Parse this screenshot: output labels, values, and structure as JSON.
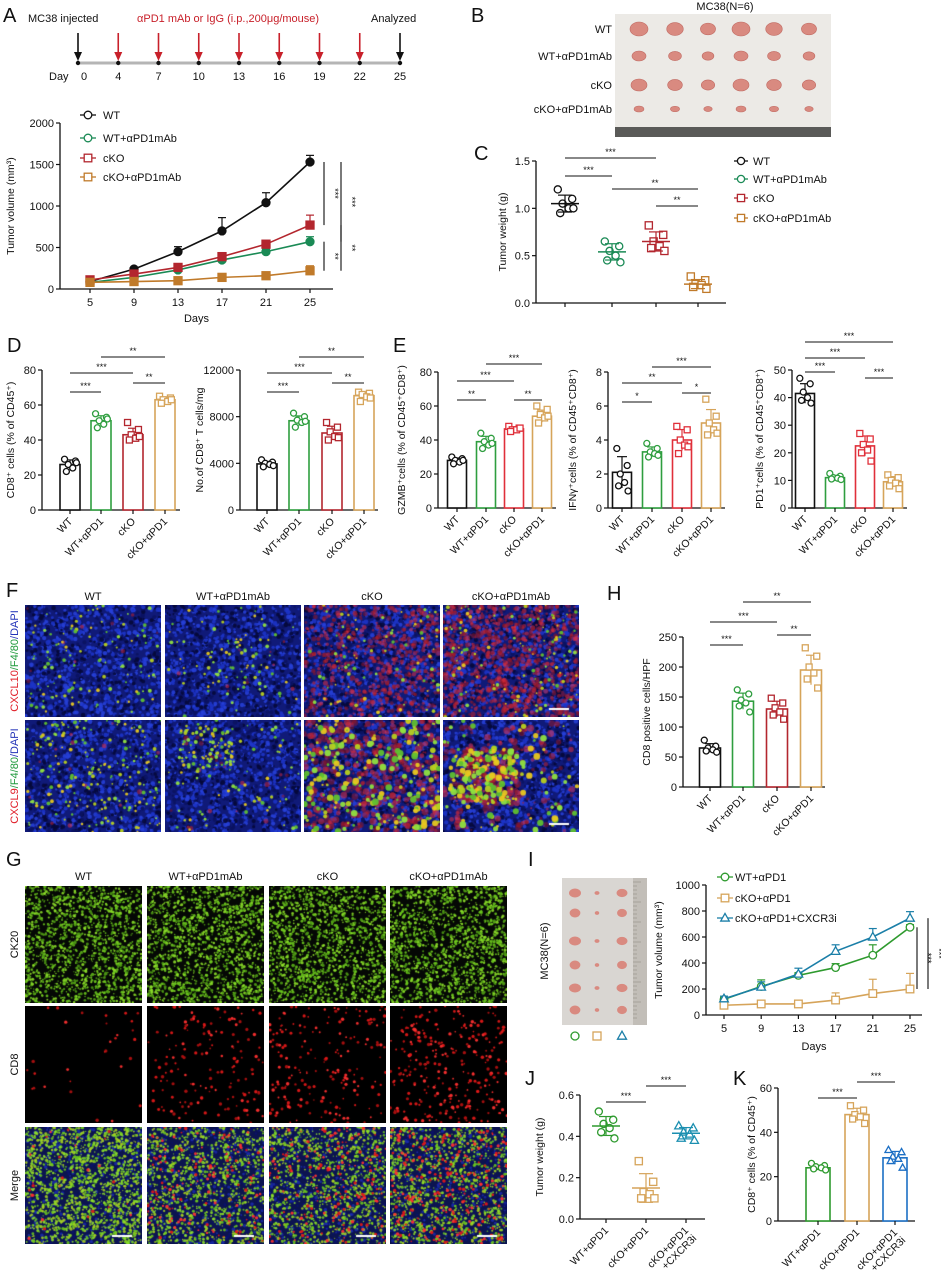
{
  "panel_labels": [
    "A",
    "B",
    "C",
    "D",
    "E",
    "F",
    "G",
    "H",
    "I",
    "J",
    "K"
  ],
  "panel_a": {
    "timeline": {
      "injected_label": "MC38 injected",
      "treatment_label": "αPD1 mAb or IgG (i.p.,200μg/mouse)",
      "analyzed_label": "Analyzed",
      "day_label": "Day",
      "days": [
        "0",
        "4",
        "7",
        "10",
        "13",
        "16",
        "19",
        "22",
        "25"
      ],
      "treatment_days": [
        "4",
        "7",
        "10",
        "13",
        "16",
        "19",
        "22"
      ],
      "colors": {
        "event": "#111111",
        "treatment": "#c8202a",
        "line": "#b5b5b5"
      }
    }
  },
  "panel_b": {
    "title": "MC38(N=6)",
    "rows": [
      "WT",
      "WT+αPD1mAb",
      "cKO",
      "cKO+αPD1mAb"
    ]
  },
  "panel_f": {
    "columns": [
      "WT",
      "WT+αPD1mAb",
      "cKO",
      "cKO+αPD1mAb"
    ],
    "rows": [
      [
        {
          "text": "CXCL10",
          "color": "#e0202a"
        },
        {
          "text": "/F4/80",
          "color": "#1f9a3c"
        },
        {
          "text": "/DAPI",
          "color": "#2233b8"
        }
      ],
      [
        {
          "text": "CXCL9",
          "color": "#e0202a"
        },
        {
          "text": "/F4/80",
          "color": "#1f9a3c"
        },
        {
          "text": "/DAPI",
          "color": "#2233b8"
        }
      ]
    ]
  },
  "panel_g": {
    "columns": [
      "WT",
      "WT+αPD1mAb",
      "cKO",
      "cKO+αPD1mAb"
    ],
    "rows": [
      "CK20",
      "CD8",
      "Merge"
    ]
  },
  "panel_i": {
    "photo_label": "MC38(N=6)",
    "photo_symbols": [
      "circle",
      "square",
      "triangle"
    ]
  },
  "chart_data": [
    {
      "id": "A",
      "type": "line",
      "xlabel": "Days",
      "ylabel": "Tumor volume (mm³)",
      "x": [
        5,
        9,
        13,
        17,
        21,
        25
      ],
      "xticks": [
        "5",
        "9",
        "13",
        "17",
        "21",
        "25"
      ],
      "yticks": [
        "0",
        "500",
        "1000",
        "1500",
        "2000"
      ],
      "ylim": [
        0,
        2000
      ],
      "series": [
        {
          "name": "WT",
          "color": "#111111",
          "marker": "circle",
          "values": [
            90,
            240,
            450,
            700,
            1040,
            1530
          ],
          "errors": [
            10,
            20,
            60,
            160,
            120,
            80
          ]
        },
        {
          "name": "WT+αPD1mAb",
          "color": "#1a8a55",
          "marker": "circle",
          "values": [
            80,
            140,
            230,
            350,
            450,
            570
          ],
          "errors": [
            10,
            15,
            20,
            25,
            30,
            60
          ]
        },
        {
          "name": "cKO",
          "color": "#b3262e",
          "marker": "square",
          "values": [
            110,
            180,
            260,
            390,
            540,
            770
          ],
          "errors": [
            10,
            15,
            20,
            25,
            30,
            120
          ]
        },
        {
          "name": "cKO+αPD1mAb",
          "color": "#c07a2a",
          "marker": "square",
          "values": [
            80,
            90,
            100,
            140,
            160,
            220
          ],
          "errors": [
            8,
            8,
            10,
            15,
            20,
            60
          ]
        }
      ],
      "significance": [
        {
          "label": "***",
          "from": 0,
          "to": 2
        },
        {
          "label": "***",
          "from": 0,
          "to": 1
        },
        {
          "label": "**",
          "from": 1,
          "to": 3
        },
        {
          "label": "**",
          "from": 2,
          "to": 3
        }
      ]
    },
    {
      "id": "C",
      "type": "scatter",
      "xlabel": "",
      "ylabel": "Tumor weight (g)",
      "categories": [
        [
          "WT"
        ],
        [
          "WT+αPD1mAb"
        ],
        [
          "cKO"
        ],
        [
          "cKO+αPD1mAb"
        ]
      ],
      "yticks": [
        "0.0",
        "0.5",
        "1.0",
        "1.5"
      ],
      "ylim": [
        0,
        1.5
      ],
      "colors": [
        "#111111",
        "#1a8a55",
        "#b3262e",
        "#c07a2a"
      ],
      "markers": [
        "circle",
        "circle",
        "square",
        "square"
      ],
      "values": [
        1.05,
        0.54,
        0.65,
        0.2
      ],
      "points": [
        [
          1.2,
          1.1,
          1.05,
          1.0,
          0.95,
          1.0
        ],
        [
          0.65,
          0.6,
          0.55,
          0.5,
          0.45,
          0.43
        ],
        [
          0.82,
          0.72,
          0.65,
          0.6,
          0.58,
          0.55
        ],
        [
          0.28,
          0.24,
          0.2,
          0.19,
          0.17,
          0.15
        ]
      ],
      "legend": [
        "WT",
        "WT+αPD1mAb",
        "cKO",
        "cKO+αPD1mAb"
      ],
      "legend_position": "right",
      "significance": [
        {
          "label": "***",
          "a": 0,
          "b": 2
        },
        {
          "label": "***",
          "a": 0,
          "b": 1
        },
        {
          "label": "**",
          "a": 1,
          "b": 3
        },
        {
          "label": "**",
          "a": 2,
          "b": 3
        }
      ]
    },
    {
      "id": "D1",
      "type": "bar",
      "ylabel": "CD8⁺ cells (% of CD45⁺)",
      "categories": [
        [
          "WT"
        ],
        [
          "WT+αPD1"
        ],
        [
          "cKO"
        ],
        [
          "cKO+αPD1"
        ]
      ],
      "yticks": [
        "0",
        "20",
        "40",
        "60",
        "80"
      ],
      "ylim": [
        0,
        80
      ],
      "colors": [
        "#111111",
        "#2f9e3f",
        "#b3262e",
        "#d6a45a"
      ],
      "markers": [
        "circle",
        "circle",
        "square",
        "square"
      ],
      "values": [
        26,
        51,
        43,
        63
      ],
      "points": [
        [
          29,
          28,
          26,
          24,
          22,
          27
        ],
        [
          55,
          53,
          51,
          49,
          47,
          52
        ],
        [
          50,
          46,
          43,
          41,
          40,
          42
        ],
        [
          65,
          64,
          63,
          62,
          61,
          63
        ]
      ],
      "significance": [
        {
          "label": "***",
          "a": 0,
          "b": 1
        },
        {
          "label": "***",
          "a": 0,
          "b": 2
        },
        {
          "label": "**",
          "a": 1,
          "b": 3
        },
        {
          "label": "**",
          "a": 2,
          "b": 3
        }
      ]
    },
    {
      "id": "D2",
      "type": "bar",
      "ylabel": "No.of CD8⁺ T cells/mg",
      "categories": [
        [
          "WT"
        ],
        [
          "WT+αPD1"
        ],
        [
          "cKO"
        ],
        [
          "cKO+αPD1"
        ]
      ],
      "yticks": [
        "0",
        "4000",
        "8000",
        "12000"
      ],
      "ylim": [
        0,
        12000
      ],
      "colors": [
        "#111111",
        "#2f9e3f",
        "#b3262e",
        "#d6a45a"
      ],
      "markers": [
        "circle",
        "circle",
        "square",
        "square"
      ],
      "values": [
        3950,
        7650,
        6600,
        9800
      ],
      "points": [
        [
          4300,
          4100,
          4000,
          3900,
          3700,
          3800
        ],
        [
          8300,
          8000,
          7700,
          7500,
          7100,
          7600
        ],
        [
          7500,
          7100,
          6700,
          6300,
          6000,
          6200
        ],
        [
          10100,
          10000,
          9900,
          9700,
          9300,
          9600
        ]
      ],
      "significance": [
        {
          "label": "***",
          "a": 0,
          "b": 1
        },
        {
          "label": "***",
          "a": 0,
          "b": 2
        },
        {
          "label": "**",
          "a": 1,
          "b": 3
        },
        {
          "label": "**",
          "a": 2,
          "b": 3
        }
      ]
    },
    {
      "id": "E1",
      "type": "bar",
      "ylabel": "GZMB⁺cells (% of CD45⁺CD8⁺)",
      "categories": [
        [
          "WT"
        ],
        [
          "WT+αPD1"
        ],
        [
          "cKO"
        ],
        [
          "cKO+αPD1"
        ]
      ],
      "yticks": [
        "0",
        "20",
        "40",
        "60",
        "80"
      ],
      "ylim": [
        0,
        80
      ],
      "colors": [
        "#111111",
        "#2f9e3f",
        "#e0303a",
        "#d6a45a"
      ],
      "markers": [
        "circle",
        "circle",
        "square",
        "square"
      ],
      "values": [
        28,
        39,
        46.5,
        54
      ],
      "points": [
        [
          30,
          29,
          28,
          27,
          26,
          28
        ],
        [
          44,
          41,
          39,
          37,
          35,
          38
        ],
        [
          48,
          47,
          46,
          46,
          45,
          47
        ],
        [
          60,
          58,
          55,
          53,
          50,
          54
        ]
      ],
      "significance": [
        {
          "label": "**",
          "a": 0,
          "b": 1
        },
        {
          "label": "***",
          "a": 0,
          "b": 2
        },
        {
          "label": "***",
          "a": 1,
          "b": 3
        },
        {
          "label": "**",
          "a": 2,
          "b": 3
        }
      ]
    },
    {
      "id": "E2",
      "type": "bar",
      "ylabel": "IFNγ⁺cells (% of CD45⁺CD8⁺)",
      "categories": [
        [
          "WT"
        ],
        [
          "WT+αPD1"
        ],
        [
          "cKO"
        ],
        [
          "cKO+αPD1"
        ]
      ],
      "yticks": [
        "0",
        "2",
        "4",
        "6",
        "8"
      ],
      "ylim": [
        0,
        8
      ],
      "colors": [
        "#111111",
        "#2f9e3f",
        "#e0303a",
        "#d6a45a"
      ],
      "markers": [
        "circle",
        "circle",
        "square",
        "square"
      ],
      "values": [
        2.1,
        3.3,
        4.0,
        5.0
      ],
      "points": [
        [
          3.5,
          2.5,
          2.0,
          1.5,
          1.3,
          1.0
        ],
        [
          3.8,
          3.5,
          3.3,
          3.2,
          3.0,
          3.1
        ],
        [
          4.8,
          4.6,
          4.0,
          3.7,
          3.2,
          3.6
        ],
        [
          6.4,
          5.4,
          5.0,
          4.6,
          4.3,
          4.4
        ]
      ],
      "significance": [
        {
          "label": "*",
          "a": 0,
          "b": 1
        },
        {
          "label": "**",
          "a": 0,
          "b": 2
        },
        {
          "label": "***",
          "a": 1,
          "b": 3
        },
        {
          "label": "*",
          "a": 2,
          "b": 3
        }
      ]
    },
    {
      "id": "E3",
      "type": "bar",
      "ylabel": "PD1⁺cells (% of CD45⁺CD8⁺)",
      "categories": [
        [
          "WT"
        ],
        [
          "WT+αPD1"
        ],
        [
          "cKO"
        ],
        [
          "cKO+αPD1"
        ]
      ],
      "yticks": [
        "0",
        "10",
        "20",
        "30",
        "40",
        "50"
      ],
      "ylim": [
        0,
        50
      ],
      "colors": [
        "#111111",
        "#2f9e3f",
        "#e0303a",
        "#d6a45a"
      ],
      "markers": [
        "circle",
        "circle",
        "square",
        "square"
      ],
      "values": [
        41.5,
        11,
        22.5,
        9.5
      ],
      "points": [
        [
          47,
          45,
          42,
          40,
          39,
          38
        ],
        [
          12.5,
          11.5,
          11,
          10.8,
          10.5,
          10.3
        ],
        [
          27,
          25,
          23,
          21,
          20,
          17
        ],
        [
          12,
          11,
          10,
          9,
          8,
          7
        ]
      ],
      "significance": [
        {
          "label": "***",
          "a": 0,
          "b": 1
        },
        {
          "label": "***",
          "a": 0,
          "b": 2
        },
        {
          "label": "***",
          "a": 0,
          "b": 3
        },
        {
          "label": "***",
          "a": 2,
          "b": 3
        }
      ]
    },
    {
      "id": "H",
      "type": "bar",
      "ylabel": "CD8 positive cells/HPF",
      "categories": [
        [
          "WT"
        ],
        [
          "WT+αPD1"
        ],
        [
          "cKO"
        ],
        [
          "cKO+αPD1"
        ]
      ],
      "yticks": [
        "0",
        "50",
        "100",
        "150",
        "200",
        "250"
      ],
      "ylim": [
        0,
        250
      ],
      "colors": [
        "#111111",
        "#2f9e3f",
        "#b3262e",
        "#d6a45a"
      ],
      "markers": [
        "circle",
        "circle",
        "square",
        "square"
      ],
      "values": [
        65,
        143,
        130,
        195
      ],
      "points": [
        [
          78,
          68,
          65,
          62,
          60,
          58
        ],
        [
          162,
          155,
          145,
          140,
          135,
          125
        ],
        [
          148,
          140,
          132,
          125,
          120,
          113
        ],
        [
          232,
          218,
          200,
          190,
          180,
          165
        ]
      ],
      "significance": [
        {
          "label": "***",
          "a": 0,
          "b": 1
        },
        {
          "label": "***",
          "a": 0,
          "b": 2
        },
        {
          "label": "**",
          "a": 1,
          "b": 3
        },
        {
          "label": "**",
          "a": 2,
          "b": 3
        }
      ]
    },
    {
      "id": "I",
      "type": "line",
      "xlabel": "Days",
      "ylabel": "Tumor volume (mm³)",
      "x": [
        5,
        9,
        13,
        17,
        21,
        25
      ],
      "xticks": [
        "5",
        "9",
        "13",
        "17",
        "21",
        "25"
      ],
      "yticks": [
        "0",
        "200",
        "400",
        "600",
        "800",
        "1000"
      ],
      "ylim": [
        0,
        1000
      ],
      "series": [
        {
          "name": "WT+αPD1",
          "color": "#2e9a2e",
          "marker": "circle",
          "values": [
            120,
            220,
            305,
            365,
            460,
            675
          ],
          "errors": [
            15,
            50,
            20,
            30,
            80,
            20
          ]
        },
        {
          "name": "cKO+αPD1",
          "color": "#d6a45a",
          "marker": "square",
          "values": [
            75,
            85,
            85,
            115,
            165,
            200
          ],
          "errors": [
            5,
            10,
            10,
            55,
            110,
            120
          ]
        },
        {
          "name": "cKO+αPD1+CXCR3i",
          "color": "#1b7fa8",
          "marker": "triangle",
          "values": [
            125,
            215,
            315,
            490,
            600,
            745
          ],
          "errors": [
            20,
            40,
            45,
            50,
            65,
            50
          ]
        }
      ],
      "significance": [
        {
          "label": "***",
          "from": 0,
          "to": 1
        },
        {
          "label": "***",
          "from": 2,
          "to": 1
        }
      ]
    },
    {
      "id": "J",
      "type": "scatter",
      "ylabel": "Tumor weight (g)",
      "categories": [
        [
          "WT+αPD1"
        ],
        [
          "cKO+αPD1"
        ],
        [
          "cKO+αPD1",
          "+CXCR3i"
        ]
      ],
      "yticks": [
        "0.0",
        "0.2",
        "0.4",
        "0.6"
      ],
      "ylim": [
        0,
        0.6
      ],
      "colors": [
        "#2e9a2e",
        "#d6a45a",
        "#1b8fb0"
      ],
      "markers": [
        "circle",
        "square",
        "triangle"
      ],
      "values": [
        0.45,
        0.15,
        0.415
      ],
      "points": [
        [
          0.52,
          0.48,
          0.46,
          0.44,
          0.42,
          0.39
        ],
        [
          0.28,
          0.18,
          0.13,
          0.12,
          0.1,
          0.1
        ],
        [
          0.45,
          0.44,
          0.42,
          0.41,
          0.39,
          0.38
        ]
      ],
      "significance": [
        {
          "label": "***",
          "a": 0,
          "b": 1
        },
        {
          "label": "***",
          "a": 1,
          "b": 2
        }
      ]
    },
    {
      "id": "K",
      "type": "bar",
      "ylabel": "CD8⁺ cells (% of CD45⁺)",
      "categories": [
        [
          "WT+αPD1"
        ],
        [
          "cKO+αPD1"
        ],
        [
          "cKO+αPD1",
          "+CXCR3i"
        ]
      ],
      "yticks": [
        "0",
        "20",
        "40",
        "60"
      ],
      "ylim": [
        0,
        60
      ],
      "colors": [
        "#2e9a2e",
        "#d6a45a",
        "#1c6fc4"
      ],
      "markers": [
        "circle",
        "square",
        "triangle"
      ],
      "values": [
        24,
        48,
        28.5
      ],
      "points": [
        [
          26,
          25,
          24.5,
          24,
          23.5,
          23
        ],
        [
          52,
          50,
          48,
          47,
          46,
          44
        ],
        [
          32,
          31,
          29,
          28,
          27,
          24
        ]
      ],
      "significance": [
        {
          "label": "***",
          "a": 0,
          "b": 1
        },
        {
          "label": "***",
          "a": 1,
          "b": 2
        }
      ]
    }
  ]
}
